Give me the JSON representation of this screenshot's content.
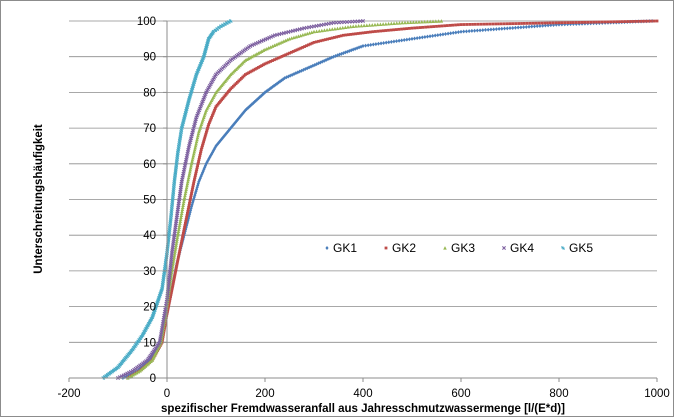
{
  "chart_data": {
    "type": "scatter",
    "title": "",
    "xlabel": "spezifischer Fremdwasseranfall aus Jahresschmutzwassermenge [l/(E*d)]",
    "ylabel": "Unterschreitungshäufigkeit",
    "xlim": [
      -200,
      1000
    ],
    "ylim": [
      0,
      100
    ],
    "x_ticks": [
      "-200",
      "0",
      "200",
      "400",
      "600",
      "800",
      "1000"
    ],
    "y_ticks": [
      "0",
      "10",
      "20",
      "30",
      "40",
      "50",
      "60",
      "70",
      "80",
      "90",
      "100"
    ],
    "grid": "horizontal",
    "legend_position": "inside-right",
    "series": [
      {
        "name": "GK1",
        "color": "#4a7ebb",
        "marker": "diamond",
        "points": [
          [
            -90,
            0
          ],
          [
            -60,
            2
          ],
          [
            -35,
            5
          ],
          [
            -15,
            10
          ],
          [
            0,
            18
          ],
          [
            10,
            25
          ],
          [
            20,
            32
          ],
          [
            35,
            40
          ],
          [
            50,
            48
          ],
          [
            65,
            55
          ],
          [
            80,
            60
          ],
          [
            100,
            65
          ],
          [
            130,
            70
          ],
          [
            160,
            75
          ],
          [
            200,
            80
          ],
          [
            240,
            84
          ],
          [
            290,
            87
          ],
          [
            340,
            90
          ],
          [
            400,
            93
          ],
          [
            500,
            95
          ],
          [
            600,
            97
          ],
          [
            700,
            98
          ],
          [
            800,
            99
          ],
          [
            900,
            99.5
          ],
          [
            990,
            100
          ]
        ]
      },
      {
        "name": "GK2",
        "color": "#be4b48",
        "marker": "square",
        "points": [
          [
            -80,
            0
          ],
          [
            -55,
            2
          ],
          [
            -30,
            5
          ],
          [
            -10,
            10
          ],
          [
            0,
            18
          ],
          [
            12,
            26
          ],
          [
            25,
            35
          ],
          [
            40,
            45
          ],
          [
            55,
            55
          ],
          [
            70,
            64
          ],
          [
            85,
            71
          ],
          [
            100,
            76
          ],
          [
            130,
            81
          ],
          [
            160,
            85
          ],
          [
            200,
            88
          ],
          [
            250,
            91
          ],
          [
            300,
            94
          ],
          [
            360,
            96
          ],
          [
            420,
            97
          ],
          [
            500,
            98
          ],
          [
            600,
            99
          ],
          [
            800,
            99.5
          ],
          [
            1000,
            100
          ]
        ]
      },
      {
        "name": "GK3",
        "color": "#98b954",
        "marker": "triangle",
        "points": [
          [
            -80,
            0
          ],
          [
            -55,
            2
          ],
          [
            -30,
            5
          ],
          [
            -12,
            10
          ],
          [
            0,
            20
          ],
          [
            10,
            30
          ],
          [
            22,
            40
          ],
          [
            35,
            50
          ],
          [
            50,
            60
          ],
          [
            65,
            69
          ],
          [
            80,
            75
          ],
          [
            100,
            80
          ],
          [
            130,
            85
          ],
          [
            160,
            89
          ],
          [
            200,
            92
          ],
          [
            250,
            95
          ],
          [
            300,
            97
          ],
          [
            380,
            98.5
          ],
          [
            480,
            99.5
          ],
          [
            560,
            100
          ]
        ]
      },
      {
        "name": "GK4",
        "color": "#7d60a0",
        "marker": "cross",
        "points": [
          [
            -100,
            0
          ],
          [
            -70,
            2
          ],
          [
            -40,
            5
          ],
          [
            -15,
            10
          ],
          [
            0,
            22
          ],
          [
            10,
            35
          ],
          [
            20,
            45
          ],
          [
            30,
            55
          ],
          [
            45,
            65
          ],
          [
            60,
            73
          ],
          [
            80,
            80
          ],
          [
            100,
            85
          ],
          [
            130,
            89
          ],
          [
            170,
            93
          ],
          [
            220,
            96
          ],
          [
            280,
            98
          ],
          [
            340,
            99.5
          ],
          [
            400,
            100
          ]
        ]
      },
      {
        "name": "GK5",
        "color": "#46aac5",
        "marker": "star",
        "points": [
          [
            -130,
            0
          ],
          [
            -100,
            3
          ],
          [
            -70,
            8
          ],
          [
            -50,
            12
          ],
          [
            -30,
            17
          ],
          [
            -10,
            25
          ],
          [
            0,
            35
          ],
          [
            8,
            45
          ],
          [
            15,
            55
          ],
          [
            22,
            63
          ],
          [
            30,
            70
          ],
          [
            45,
            78
          ],
          [
            60,
            85
          ],
          [
            75,
            90
          ],
          [
            85,
            95
          ],
          [
            95,
            97
          ],
          [
            110,
            98.5
          ],
          [
            130,
            100
          ]
        ]
      }
    ]
  }
}
